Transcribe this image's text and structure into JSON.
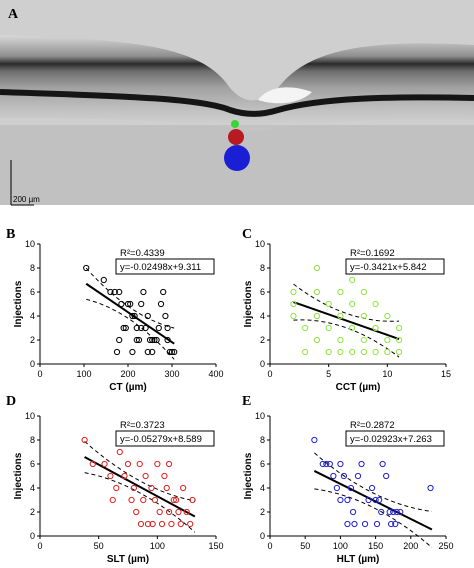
{
  "panel_a": {
    "letter": "A",
    "scale_bar_label": "200 µm",
    "marker_colors": {
      "small": "#39d436",
      "medium": "#b81a22",
      "large": "#1a1fd6"
    }
  },
  "chart_data": [
    {
      "panel": "B",
      "type": "scatter",
      "xlabel": "CT (µm)",
      "ylabel": "Injections",
      "xlim": [
        0,
        400
      ],
      "ylim": [
        0,
        10
      ],
      "xticks": [
        0,
        100,
        200,
        300,
        400
      ],
      "yticks": [
        0,
        2,
        4,
        6,
        8,
        10
      ],
      "r2_label": "R²=0.4339",
      "equation": "y=-0.02498x+9.311",
      "slope": -0.02498,
      "intercept": 9.311,
      "fit_range": [
        105,
        305
      ],
      "ci_halfwidth_mid": 0.5,
      "ci_halfwidth_end": 1.3,
      "marker_color": "#000000",
      "grid": false,
      "points": [
        [
          105,
          8
        ],
        [
          145,
          7
        ],
        [
          160,
          6
        ],
        [
          170,
          6
        ],
        [
          180,
          6
        ],
        [
          185,
          5
        ],
        [
          200,
          5
        ],
        [
          205,
          5
        ],
        [
          210,
          4
        ],
        [
          215,
          4
        ],
        [
          220,
          3
        ],
        [
          225,
          2
        ],
        [
          230,
          5
        ],
        [
          235,
          6
        ],
        [
          175,
          1
        ],
        [
          180,
          2
        ],
        [
          190,
          3
        ],
        [
          195,
          3
        ],
        [
          210,
          1
        ],
        [
          220,
          2
        ],
        [
          240,
          3
        ],
        [
          245,
          4
        ],
        [
          250,
          2
        ],
        [
          255,
          1
        ],
        [
          260,
          2
        ],
        [
          265,
          2
        ],
        [
          270,
          3
        ],
        [
          275,
          5
        ],
        [
          280,
          6
        ],
        [
          285,
          4
        ],
        [
          290,
          3
        ],
        [
          290,
          2
        ],
        [
          295,
          1
        ],
        [
          300,
          1
        ],
        [
          305,
          1
        ],
        [
          255,
          2
        ],
        [
          230,
          3
        ],
        [
          245,
          1
        ]
      ]
    },
    {
      "panel": "C",
      "type": "scatter",
      "xlabel": "CCT (µm)",
      "ylabel": "Injections",
      "xlim": [
        0,
        15
      ],
      "ylim": [
        0,
        10
      ],
      "xticks": [
        0,
        5,
        10,
        15
      ],
      "yticks": [
        0,
        2,
        4,
        6,
        8,
        10
      ],
      "r2_label": "R²=0.1692",
      "equation": "y=-0.3421x+5.842",
      "slope": -0.3421,
      "intercept": 5.842,
      "fit_range": [
        2,
        11
      ],
      "ci_halfwidth_mid": 0.6,
      "ci_halfwidth_end": 1.5,
      "marker_color": "#8ee53f",
      "grid": false,
      "points": [
        [
          2,
          6
        ],
        [
          2,
          5
        ],
        [
          2,
          4
        ],
        [
          3,
          3
        ],
        [
          3,
          1
        ],
        [
          4,
          8
        ],
        [
          4,
          6
        ],
        [
          4,
          4
        ],
        [
          4,
          2
        ],
        [
          5,
          5
        ],
        [
          5,
          3
        ],
        [
          5,
          1
        ],
        [
          6,
          6
        ],
        [
          6,
          4
        ],
        [
          6,
          2
        ],
        [
          6,
          1
        ],
        [
          7,
          7
        ],
        [
          7,
          5
        ],
        [
          7,
          3
        ],
        [
          7,
          1
        ],
        [
          8,
          6
        ],
        [
          8,
          4
        ],
        [
          8,
          2
        ],
        [
          8,
          1
        ],
        [
          9,
          5
        ],
        [
          9,
          3
        ],
        [
          9,
          1
        ],
        [
          10,
          4
        ],
        [
          10,
          2
        ],
        [
          10,
          1
        ],
        [
          11,
          3
        ],
        [
          11,
          2
        ],
        [
          11,
          1
        ]
      ]
    },
    {
      "panel": "D",
      "type": "scatter",
      "xlabel": "SLT (µm)",
      "ylabel": "Injections",
      "xlim": [
        0,
        150
      ],
      "ylim": [
        0,
        10
      ],
      "xticks": [
        0,
        50,
        100,
        150
      ],
      "yticks": [
        0,
        2,
        4,
        6,
        8,
        10
      ],
      "r2_label": "R²=0.3723",
      "equation": "y=-0.05279x+8.589",
      "slope": -0.05279,
      "intercept": 8.589,
      "fit_range": [
        38,
        132
      ],
      "ci_halfwidth_mid": 0.5,
      "ci_halfwidth_end": 1.3,
      "marker_color": "#e02020",
      "grid": false,
      "points": [
        [
          38,
          8
        ],
        [
          45,
          6
        ],
        [
          55,
          6
        ],
        [
          60,
          5
        ],
        [
          62,
          3
        ],
        [
          65,
          4
        ],
        [
          68,
          7
        ],
        [
          72,
          5
        ],
        [
          75,
          6
        ],
        [
          78,
          3
        ],
        [
          80,
          4
        ],
        [
          82,
          2
        ],
        [
          85,
          6
        ],
        [
          88,
          3
        ],
        [
          90,
          5
        ],
        [
          92,
          1
        ],
        [
          95,
          4
        ],
        [
          98,
          3
        ],
        [
          100,
          6
        ],
        [
          102,
          2
        ],
        [
          104,
          1
        ],
        [
          106,
          5
        ],
        [
          108,
          4
        ],
        [
          110,
          2
        ],
        [
          112,
          1
        ],
        [
          114,
          3
        ],
        [
          116,
          3
        ],
        [
          118,
          2
        ],
        [
          120,
          1
        ],
        [
          122,
          4
        ],
        [
          125,
          2
        ],
        [
          128,
          1
        ],
        [
          130,
          3
        ],
        [
          96,
          1
        ],
        [
          86,
          1
        ],
        [
          110,
          6
        ]
      ]
    },
    {
      "panel": "E",
      "type": "scatter",
      "xlabel": "HLT (µm)",
      "ylabel": "Injections",
      "xlim": [
        0,
        250
      ],
      "ylim": [
        0,
        10
      ],
      "xticks": [
        0,
        50,
        100,
        150,
        200,
        250
      ],
      "yticks": [
        0,
        2,
        4,
        6,
        8,
        10
      ],
      "r2_label": "R²=0.2872",
      "equation": "y=-0.02923x+7.263",
      "slope": -0.02923,
      "intercept": 7.263,
      "fit_range": [
        63,
        230
      ],
      "ci_halfwidth_mid": 0.6,
      "ci_halfwidth_end": 1.5,
      "marker_color": "#2020d0",
      "grid": false,
      "points": [
        [
          63,
          8
        ],
        [
          75,
          6
        ],
        [
          80,
          6
        ],
        [
          85,
          6
        ],
        [
          90,
          5
        ],
        [
          95,
          4
        ],
        [
          100,
          6
        ],
        [
          105,
          5
        ],
        [
          110,
          3
        ],
        [
          115,
          4
        ],
        [
          118,
          2
        ],
        [
          120,
          1
        ],
        [
          125,
          5
        ],
        [
          130,
          6
        ],
        [
          135,
          1
        ],
        [
          140,
          3
        ],
        [
          145,
          4
        ],
        [
          150,
          3
        ],
        [
          152,
          1
        ],
        [
          155,
          3
        ],
        [
          158,
          2
        ],
        [
          160,
          6
        ],
        [
          165,
          5
        ],
        [
          170,
          2
        ],
        [
          172,
          1
        ],
        [
          175,
          2
        ],
        [
          178,
          1
        ],
        [
          180,
          2
        ],
        [
          185,
          2
        ],
        [
          228,
          4
        ],
        [
          110,
          1
        ],
        [
          100,
          3
        ]
      ]
    }
  ]
}
